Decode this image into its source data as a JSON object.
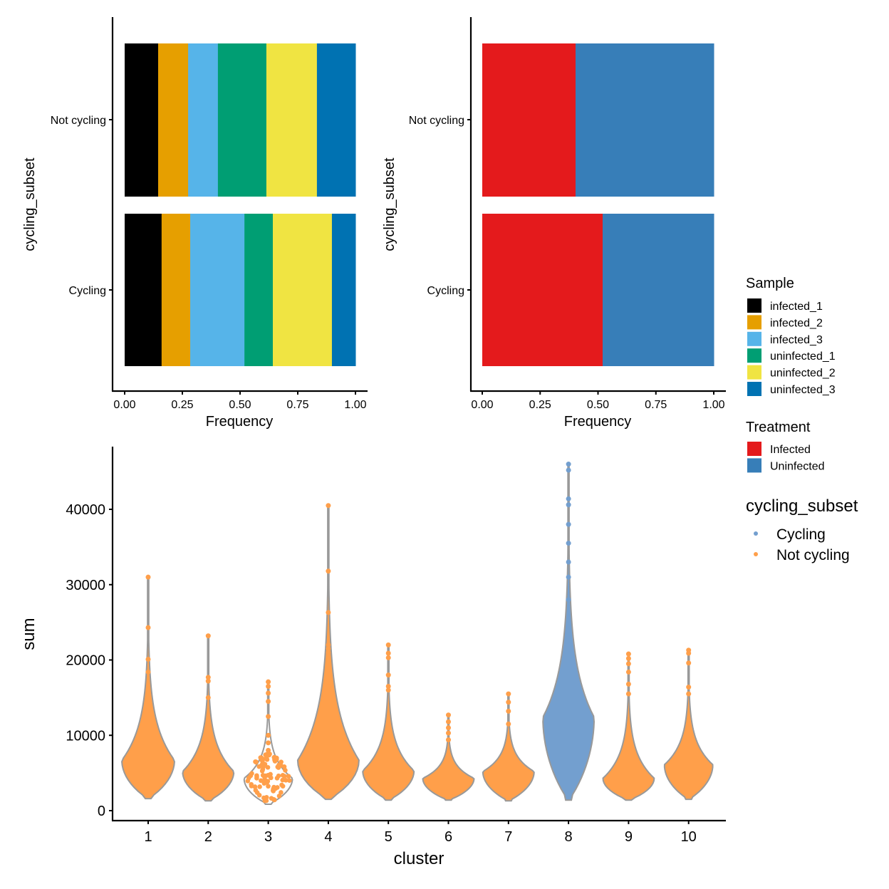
{
  "chart_data": [
    {
      "id": "sample_bar",
      "type": "bar",
      "orientation": "horizontal",
      "stacked": "fill",
      "categories": [
        "Not cycling",
        "Cycling"
      ],
      "series": [
        {
          "name": "infected_1",
          "color": "#000000",
          "values": [
            0.145,
            0.16
          ]
        },
        {
          "name": "infected_2",
          "color": "#E69F00",
          "values": [
            0.13,
            0.124
          ]
        },
        {
          "name": "infected_3",
          "color": "#56B4E9",
          "values": [
            0.129,
            0.235
          ]
        },
        {
          "name": "uninfected_1",
          "color": "#009E73",
          "values": [
            0.21,
            0.123
          ]
        },
        {
          "name": "uninfected_2",
          "color": "#F0E442",
          "values": [
            0.219,
            0.256
          ]
        },
        {
          "name": "uninfected_3",
          "color": "#0072B2",
          "values": [
            0.167,
            0.102
          ]
        }
      ],
      "xlabel": "Frequency",
      "ylabel": "cycling_subset",
      "xlim": [
        0,
        1
      ],
      "xticks": [
        "0.00",
        "0.25",
        "0.50",
        "0.75",
        "1.00"
      ],
      "grid": false
    },
    {
      "id": "treatment_bar",
      "type": "bar",
      "orientation": "horizontal",
      "stacked": "fill",
      "categories": [
        "Not cycling",
        "Cycling"
      ],
      "series": [
        {
          "name": "Infected",
          "color": "#E41A1C",
          "values": [
            0.403,
            0.52
          ]
        },
        {
          "name": "Uninfected",
          "color": "#377EB8",
          "values": [
            0.597,
            0.48
          ]
        }
      ],
      "xlabel": "Frequency",
      "ylabel": "cycling_subset",
      "xlim": [
        0,
        1
      ],
      "xticks": [
        "0.00",
        "0.25",
        "0.50",
        "0.75",
        "1.00"
      ],
      "grid": false
    },
    {
      "id": "sum_violin",
      "type": "violin",
      "categories": [
        "1",
        "2",
        "3",
        "4",
        "5",
        "6",
        "7",
        "8",
        "9",
        "10"
      ],
      "series": [
        {
          "cluster": "1",
          "subset": "Not cycling",
          "min": 1600,
          "mode": 6700,
          "max": 31000,
          "outliers": [
            24300,
            20100,
            18400
          ],
          "n": "large"
        },
        {
          "cluster": "2",
          "subset": "Not cycling",
          "min": 1300,
          "mode": 5200,
          "max": 23200,
          "outliers": [
            17700,
            17200,
            15000
          ],
          "n": "large"
        },
        {
          "cluster": "3",
          "subset": "Not cycling",
          "min": 850,
          "mode": 4300,
          "max": 17100,
          "outliers": [
            16500,
            15600,
            14500,
            12500,
            10000,
            9000,
            8000
          ],
          "n": "small"
        },
        {
          "cluster": "4",
          "subset": "Not cycling",
          "min": 1500,
          "mode": 6700,
          "max": 40500,
          "outliers": [
            31800,
            26300,
            22000,
            21500,
            21000,
            17500,
            16500
          ],
          "n": "large"
        },
        {
          "cluster": "5",
          "subset": "Not cycling",
          "min": 1400,
          "mode": 5300,
          "max": 22000,
          "outliers": [
            20900,
            20300,
            18000,
            16500,
            16000
          ],
          "n": "large"
        },
        {
          "cluster": "6",
          "subset": "Not cycling",
          "min": 1400,
          "mode": 4300,
          "max": 12700,
          "outliers": [
            11800,
            11000,
            10300,
            9400
          ],
          "n": "medium"
        },
        {
          "cluster": "7",
          "subset": "Not cycling",
          "min": 1300,
          "mode": 5200,
          "max": 15500,
          "outliers": [
            14400,
            13200,
            11500
          ],
          "n": "large"
        },
        {
          "cluster": "8",
          "subset": "Cycling",
          "min": 1400,
          "mode": 12400,
          "max": 46000,
          "outliers": [
            45200,
            41400,
            40600,
            38000,
            35500,
            33000,
            31000,
            28000
          ],
          "n": "large"
        },
        {
          "cluster": "9",
          "subset": "Not cycling",
          "min": 1400,
          "mode": 4300,
          "max": 20800,
          "outliers": [
            20200,
            19500,
            18400,
            16800,
            15500
          ],
          "n": "large"
        },
        {
          "cluster": "10",
          "subset": "Not cycling",
          "min": 1500,
          "mode": 6100,
          "max": 21300,
          "outliers": [
            20900,
            19600,
            16400,
            15500
          ],
          "n": "large"
        }
      ],
      "xlabel": "cluster",
      "ylabel": "sum",
      "ylim": [
        0,
        48000
      ],
      "yticks": [
        0,
        10000,
        20000,
        30000,
        40000
      ],
      "colors": {
        "Cycling": "#739FCF",
        "Not cycling": "#FF9F4A",
        "outline": "#999999"
      },
      "grid": false
    }
  ],
  "legends": {
    "sample": {
      "title": "Sample",
      "items": [
        {
          "label": "infected_1",
          "color": "#000000"
        },
        {
          "label": "infected_2",
          "color": "#E69F00"
        },
        {
          "label": "infected_3",
          "color": "#56B4E9"
        },
        {
          "label": "uninfected_1",
          "color": "#009E73"
        },
        {
          "label": "uninfected_2",
          "color": "#F0E442"
        },
        {
          "label": "uninfected_3",
          "color": "#0072B2"
        }
      ]
    },
    "treatment": {
      "title": "Treatment",
      "items": [
        {
          "label": "Infected",
          "color": "#E41A1C"
        },
        {
          "label": "Uninfected",
          "color": "#377EB8"
        }
      ]
    },
    "cycling": {
      "title": "cycling_subset",
      "items": [
        {
          "label": "Cycling",
          "color": "#739FCF"
        },
        {
          "label": "Not cycling",
          "color": "#FF9F4A"
        }
      ]
    }
  }
}
